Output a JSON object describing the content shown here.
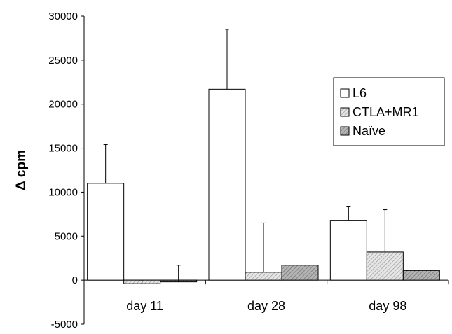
{
  "chart_data": {
    "type": "bar",
    "title": "",
    "xlabel": "",
    "ylabel": "Δ cpm",
    "ylim": [
      -5000,
      30000
    ],
    "yticks": [
      -5000,
      0,
      5000,
      10000,
      15000,
      20000,
      25000,
      30000
    ],
    "categories": [
      "day 11",
      "day 28",
      "day 98"
    ],
    "series": [
      {
        "name": "L6",
        "values": [
          11000,
          21700,
          6800
        ],
        "errors": [
          4400,
          6800,
          1600
        ],
        "color": "#ffffff",
        "pattern": "none"
      },
      {
        "name": "CTLA+MR1",
        "values": [
          -400,
          900,
          3200
        ],
        "errors": [
          300,
          5600,
          4800
        ],
        "color": "#d8d8d8",
        "pattern": "hatch-light"
      },
      {
        "name": "Naïve",
        "values": [
          -200,
          1700,
          1100
        ],
        "errors": [
          1900,
          0,
          0
        ],
        "color": "#a8a8a8",
        "pattern": "hatch-dark"
      }
    ],
    "grid": false,
    "legend_position": "right"
  }
}
